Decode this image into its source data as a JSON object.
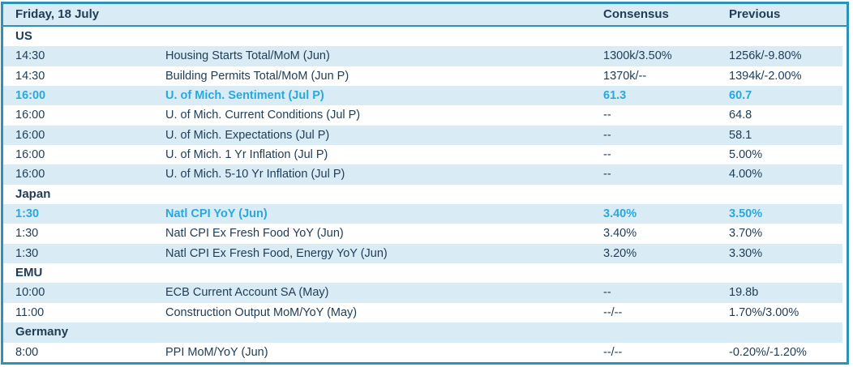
{
  "table": {
    "header": {
      "date": "Friday, 18 July",
      "consensus": "Consensus",
      "previous": "Previous"
    },
    "colors": {
      "frame_border": "#2a93b8",
      "banded_row_fill": "#d9ecf6",
      "base_text": "#1f3c55",
      "highlight_text": "#29a8dc"
    },
    "sections": [
      {
        "label": "US",
        "rows": [
          {
            "time": "14:30",
            "event": "Housing Starts Total/MoM (Jun)",
            "consensus": "1300k/3.50%",
            "previous": "1256k/-9.80%",
            "highlight": false
          },
          {
            "time": "14:30",
            "event": "Building Permits Total/MoM (Jun P)",
            "consensus": "1370k/--",
            "previous": "1394k/-2.00%",
            "highlight": false
          },
          {
            "time": "16:00",
            "event": "U. of Mich. Sentiment (Jul P)",
            "consensus": "61.3",
            "previous": "60.7",
            "highlight": true
          },
          {
            "time": "16:00",
            "event": "U. of Mich. Current Conditions (Jul P)",
            "consensus": "--",
            "previous": "64.8",
            "highlight": false
          },
          {
            "time": "16:00",
            "event": "U. of Mich. Expectations (Jul P)",
            "consensus": "--",
            "previous": "58.1",
            "highlight": false
          },
          {
            "time": "16:00",
            "event": "U. of Mich. 1 Yr Inflation (Jul P)",
            "consensus": "--",
            "previous": "5.00%",
            "highlight": false
          },
          {
            "time": "16:00",
            "event": "U. of Mich. 5-10 Yr Inflation (Jul P)",
            "consensus": "--",
            "previous": "4.00%",
            "highlight": false
          }
        ]
      },
      {
        "label": "Japan",
        "rows": [
          {
            "time": "1:30",
            "event": "Natl CPI YoY (Jun)",
            "consensus": "3.40%",
            "previous": "3.50%",
            "highlight": true
          },
          {
            "time": "1:30",
            "event": "Natl CPI Ex Fresh Food YoY (Jun)",
            "consensus": "3.40%",
            "previous": "3.70%",
            "highlight": false
          },
          {
            "time": "1:30",
            "event": "Natl CPI Ex Fresh Food, Energy YoY (Jun)",
            "consensus": "3.20%",
            "previous": "3.30%",
            "highlight": false
          }
        ]
      },
      {
        "label": "EMU",
        "rows": [
          {
            "time": "10:00",
            "event": "ECB Current Account SA (May)",
            "consensus": "--",
            "previous": "19.8b",
            "highlight": false
          },
          {
            "time": "11:00",
            "event": "Construction Output MoM/YoY (May)",
            "consensus": "--/--",
            "previous": "1.70%/3.00%",
            "highlight": false
          }
        ]
      },
      {
        "label": "Germany",
        "rows": [
          {
            "time": "8:00",
            "event": "PPI MoM/YoY (Jun)",
            "consensus": "--/--",
            "previous": "-0.20%/-1.20%",
            "highlight": false
          }
        ]
      }
    ]
  }
}
